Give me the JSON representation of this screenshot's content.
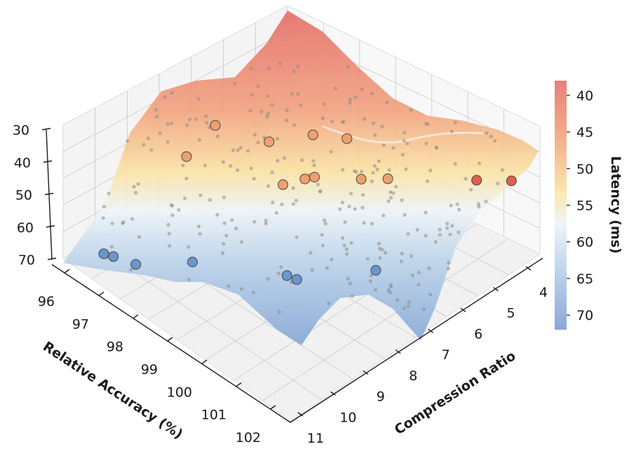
{
  "chart_data": {
    "type": "surface3d",
    "x_axis": {
      "label": "Relative Accuracy (%)",
      "ticks": [
        "96",
        "97",
        "98",
        "99",
        "100",
        "101",
        "102"
      ],
      "range": [
        95.5,
        102.5
      ]
    },
    "y_axis": {
      "label": "Compression Ratio",
      "ticks": [
        "4",
        "5",
        "6",
        "7",
        "8",
        "9",
        "10",
        "11"
      ],
      "range": [
        3.6,
        11.2
      ]
    },
    "z_axis": {
      "label": "",
      "ticks": [
        "30",
        "40",
        "50",
        "60",
        "70"
      ],
      "range": [
        30,
        70
      ],
      "inverted": true
    },
    "colorbar": {
      "label": "Latency (ms)",
      "ticks": [
        "40",
        "45",
        "50",
        "55",
        "60",
        "65",
        "70"
      ],
      "range": [
        38,
        72
      ],
      "colormap": "RdYlBu_r",
      "low_color": "#8aa7d6",
      "high_color": "#e8807c"
    },
    "highlight_points": [
      {
        "accuracy": 96.2,
        "ratio": 10.6,
        "latency": 68,
        "color": "#6c96cc"
      },
      {
        "accuracy": 96.4,
        "ratio": 10.5,
        "latency": 68,
        "color": "#6c96cc"
      },
      {
        "accuracy": 96.9,
        "ratio": 10.3,
        "latency": 68,
        "color": "#6c96cc"
      },
      {
        "accuracy": 97.6,
        "ratio": 9.2,
        "latency": 69,
        "color": "#6c96cc"
      },
      {
        "accuracy": 99.3,
        "ratio": 8.0,
        "latency": 69,
        "color": "#6c96cc"
      },
      {
        "accuracy": 99.5,
        "ratio": 7.9,
        "latency": 70,
        "color": "#6c96cc"
      },
      {
        "accuracy": 100.6,
        "ratio": 6.6,
        "latency": 67,
        "color": "#6c96cc"
      },
      {
        "accuracy": 98.1,
        "ratio": 6.8,
        "latency": 44,
        "color": "#f0a070"
      },
      {
        "accuracy": 98.2,
        "ratio": 6.2,
        "latency": 46,
        "color": "#f0a070"
      },
      {
        "accuracy": 98.3,
        "ratio": 6.0,
        "latency": 46,
        "color": "#f0a070"
      },
      {
        "accuracy": 97.0,
        "ratio": 6.0,
        "latency": 40,
        "color": "#f0a070"
      },
      {
        "accuracy": 97.3,
        "ratio": 4.9,
        "latency": 44,
        "color": "#f0a070"
      },
      {
        "accuracy": 99.1,
        "ratio": 5.4,
        "latency": 45,
        "color": "#f0a070"
      },
      {
        "accuracy": 99.5,
        "ratio": 5.0,
        "latency": 45,
        "color": "#f0a070"
      },
      {
        "accuracy": 98.0,
        "ratio": 4.6,
        "latency": 42,
        "color": "#f0a070"
      },
      {
        "accuracy": 96.0,
        "ratio": 7.6,
        "latency": 44,
        "color": "#f0a070"
      },
      {
        "accuracy": 95.8,
        "ratio": 6.4,
        "latency": 40,
        "color": "#f0a070"
      },
      {
        "accuracy": 101.1,
        "ratio": 4.0,
        "latency": 41,
        "color": "#e06050"
      },
      {
        "accuracy": 101.8,
        "ratio": 3.7,
        "latency": 38,
        "color": "#e06050"
      }
    ]
  }
}
